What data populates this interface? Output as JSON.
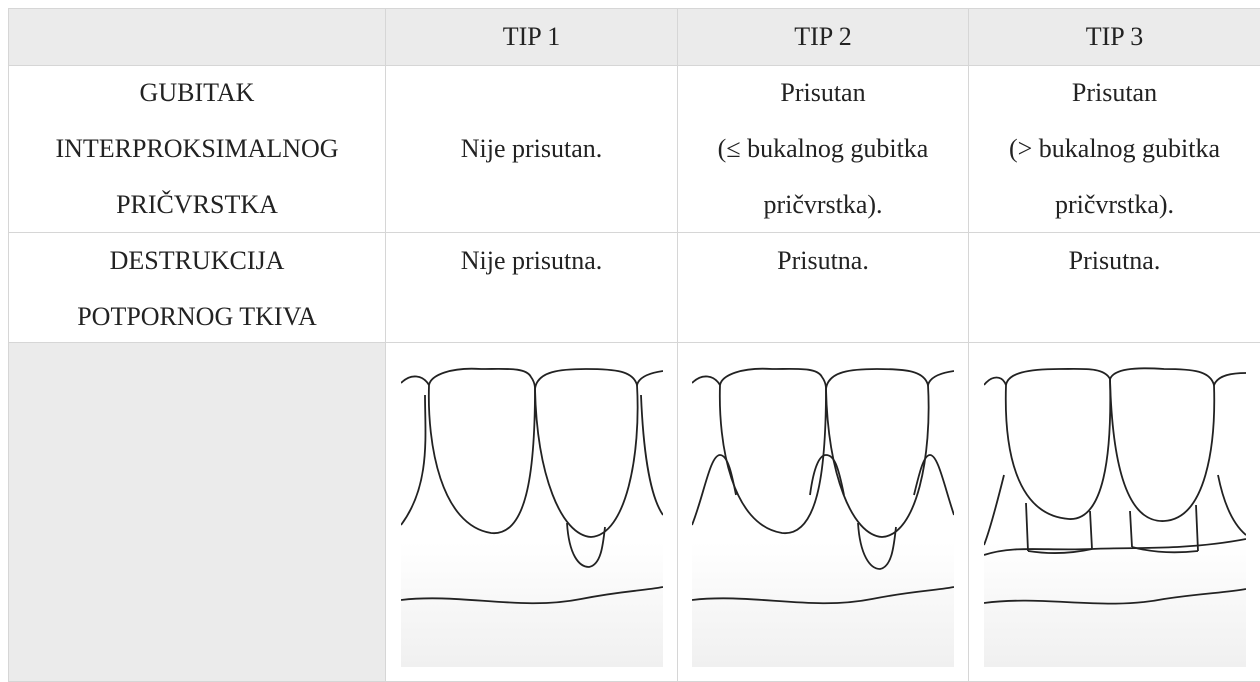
{
  "table": {
    "header": [
      "TIP 1",
      "TIP 2",
      "TIP 3"
    ],
    "rows": [
      {
        "label": [
          "GUBITAK",
          "INTERPROKSIMALNOG",
          "PRIČVRSTKA"
        ],
        "cells": [
          [
            "Nije prisutan."
          ],
          [
            "Prisutan",
            "(≤ bukalnog gubitka",
            "pričvrstka)."
          ],
          [
            "Prisutan",
            "(> bukalnog gubitka",
            "pričvrstka)."
          ]
        ]
      },
      {
        "label": [
          "DESTRUKCIJA",
          "POTPORNOG TKIVA"
        ],
        "cells": [
          [
            "Nije prisutna."
          ],
          [
            "Prisutna."
          ],
          [
            "Prisutna."
          ]
        ]
      }
    ]
  }
}
